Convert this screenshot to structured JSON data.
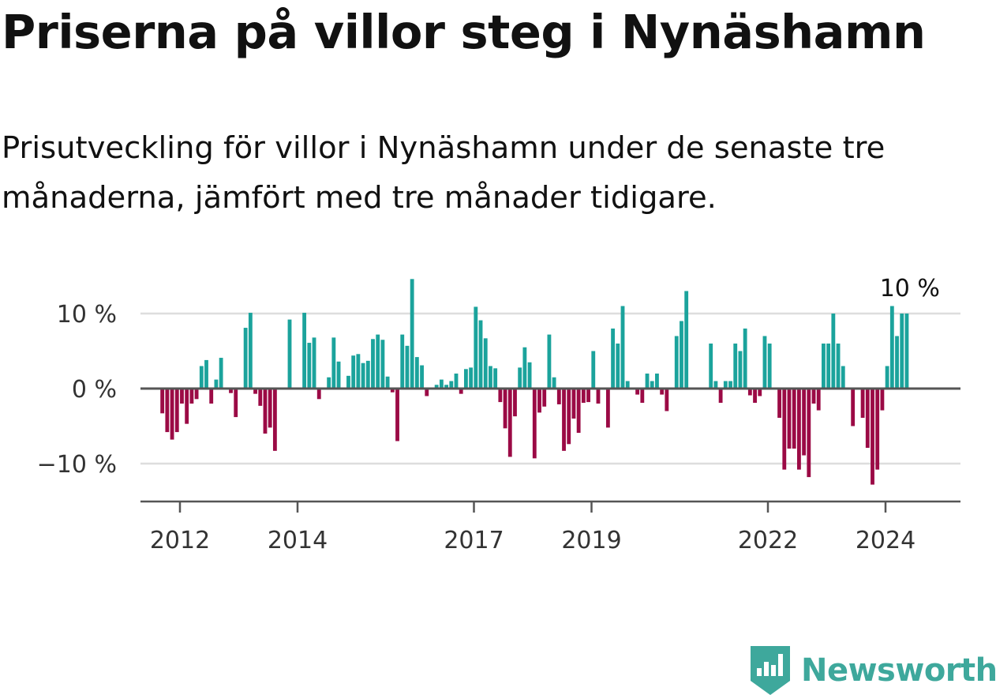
{
  "title": "Priserna på villor steg i Nynäshamn",
  "subtitle": "Prisutveckling för villor i Nynäshamn under de senaste tre månaderna, jämfört med tre månader tidigare.",
  "brand": {
    "name": "Newsworthy",
    "icon": "newsworthy-logo-icon"
  },
  "colors": {
    "positive": "#1ba39c",
    "negative": "#9b0a45",
    "axis": "#555555",
    "grid": "#dddddd"
  },
  "chart_data": {
    "type": "bar",
    "title": "Priserna på villor steg i Nynäshamn",
    "xlabel": "",
    "ylabel": "",
    "ylim": [
      -15,
      15
    ],
    "x_start": 2011.7,
    "x_step": 0.0833,
    "y_ticks": [
      {
        "value": 10,
        "label": "10 %"
      },
      {
        "value": 0,
        "label": "0 %"
      },
      {
        "value": -10,
        "label": "−10 %"
      }
    ],
    "x_ticks": [
      {
        "value": 2012,
        "label": "2012"
      },
      {
        "value": 2014,
        "label": "2014"
      },
      {
        "value": 2017,
        "label": "2017"
      },
      {
        "value": 2019,
        "label": "2019"
      },
      {
        "value": 2022,
        "label": "2022"
      },
      {
        "value": 2024,
        "label": "2024"
      }
    ],
    "last_value_label": "10 %",
    "values": [
      -3.3,
      -5.8,
      -6.8,
      -5.8,
      -2.0,
      -4.7,
      -2.0,
      -1.4,
      3.0,
      3.8,
      -2.0,
      1.2,
      4.1,
      0,
      -0.6,
      -3.8,
      0,
      8.1,
      10.1,
      -0.7,
      -2.3,
      -6.0,
      -5.2,
      -8.3,
      0,
      0,
      9.2,
      0,
      0,
      10.1,
      6.1,
      6.8,
      -1.4,
      0,
      1.5,
      6.8,
      3.6,
      0,
      1.7,
      4.4,
      4.6,
      3.4,
      3.7,
      6.6,
      7.2,
      6.5,
      1.6,
      -0.5,
      -7.0,
      7.2,
      5.7,
      14.6,
      4.2,
      3.1,
      -1.0,
      0,
      0.5,
      1.2,
      0.5,
      1.0,
      2.0,
      -0.7,
      2.6,
      2.8,
      10.9,
      9.1,
      6.7,
      3.0,
      2.7,
      -1.8,
      -5.3,
      -9.1,
      -3.7,
      2.8,
      5.5,
      3.5,
      -9.3,
      -3.2,
      -2.4,
      7.2,
      1.5,
      -2.1,
      -8.3,
      -7.4,
      -4.0,
      -5.9,
      -1.9,
      -1.8,
      5.0,
      -2.0,
      0,
      -5.2,
      8.0,
      6.0,
      11.0,
      1.0,
      0,
      -0.8,
      -1.9,
      2.0,
      1.0,
      2.0,
      -0.8,
      -3.0,
      0,
      7.0,
      9.0,
      13.0,
      0,
      0,
      0,
      0,
      6.0,
      1.0,
      -1.9,
      1.0,
      1.0,
      6.0,
      5.0,
      8.0,
      -0.9,
      -1.9,
      -1.0,
      7.0,
      6.0,
      0,
      -3.9,
      -10.8,
      -8.0,
      -8.0,
      -10.8,
      -8.9,
      -11.8,
      -2.0,
      -2.9,
      6.0,
      6.0,
      10.0,
      6.0,
      3.0,
      0,
      -5.0,
      0,
      -3.9,
      -7.9,
      -12.8,
      -10.8,
      -2.9,
      3.0,
      11.0,
      7.0,
      10.0,
      10.0
    ]
  }
}
